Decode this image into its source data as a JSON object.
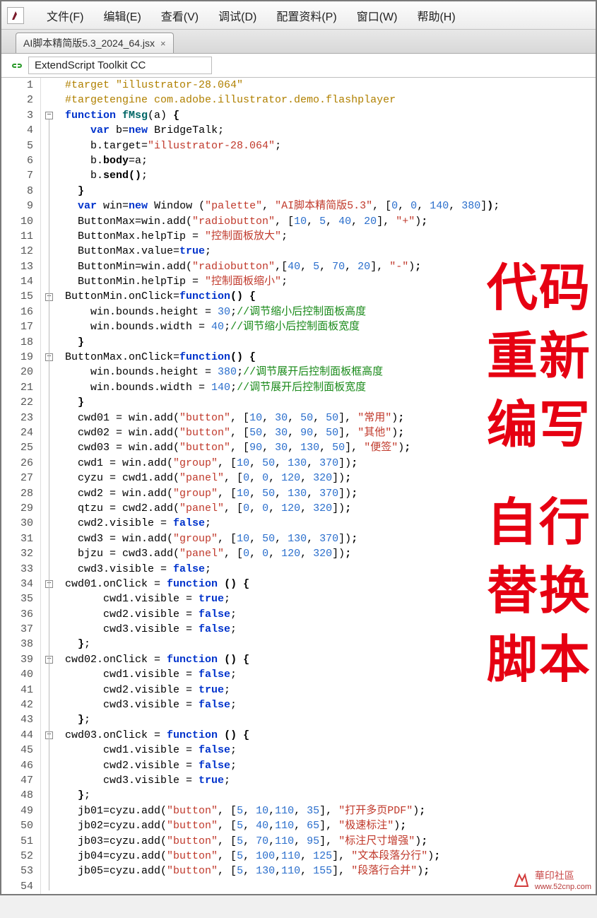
{
  "menu": {
    "items": [
      "文件(F)",
      "编辑(E)",
      "查看(V)",
      "调试(D)",
      "配置资料(P)",
      "窗口(W)",
      "帮助(H)"
    ]
  },
  "tab": {
    "title": "AI脚本精简版5.3_2024_64.jsx"
  },
  "target": {
    "selected": "ExtendScript Toolkit CC"
  },
  "overlay": {
    "l1": "代码",
    "l2": "重新",
    "l3": "编写",
    "l4": "自行",
    "l5": "替换",
    "l6": "脚本"
  },
  "watermark": {
    "name": "華印社區",
    "url": "www.52cnp.com"
  },
  "code": {
    "lines": [
      {
        "n": 1,
        "t": "hash",
        "txt": "#target \"illustrator-28.064\""
      },
      {
        "n": 2,
        "t": "hash",
        "txt": "#targetengine com.adobe.illustrator.demo.flashplayer"
      },
      {
        "n": 3,
        "html": "<span class='kw'>function</span> <span class='fn'>fMsg</span>(a) <b>{</b>"
      },
      {
        "n": 4,
        "html": "    <span class='kw'>var</span> b=<span class='kw'>new</span> BridgeTalk;"
      },
      {
        "n": 5,
        "html": "    b.target=<span class='str'>\"illustrator-28.064\"</span>;"
      },
      {
        "n": 6,
        "html": "    b.<b>body</b>=a;"
      },
      {
        "n": 7,
        "html": "    b.<b>send()</b>;"
      },
      {
        "n": 8,
        "html": "  <b>}</b>"
      },
      {
        "n": 9,
        "html": "  <span class='kw'>var</span> win=<span class='kw'>new</span> Window (<span class='str'>\"palette\"</span>, <span class='str'>\"AI脚本精简版5.3\"</span>, [<span class='num'>0</span>, <span class='num'>0</span>, <span class='num'>140</span>, <span class='num'>380</span>]<b>)</b>;"
      },
      {
        "n": 10,
        "html": "  ButtonMax=win.add(<span class='str'>\"radiobutton\"</span>, [<span class='num'>10</span>, <span class='num'>5</span>, <span class='num'>40</span>, <span class='num'>20</span>], <span class='str'>\"+\"</span>)<b>;</b>"
      },
      {
        "n": 11,
        "html": "  ButtonMax.helpTip = <span class='str'>\"控制面板放大\"</span>;"
      },
      {
        "n": 12,
        "html": "  ButtonMax.value=<span class='kw'>true</span>;"
      },
      {
        "n": 13,
        "html": "  ButtonMin=win.add(<span class='str'>\"radiobutton\"</span>,[<span class='num'>40</span>, <span class='num'>5</span>, <span class='num'>70</span>, <span class='num'>20</span>], <span class='str'>\"-\"</span>)<b>;</b>"
      },
      {
        "n": 14,
        "html": "  ButtonMin.helpTip = <span class='str'>\"控制面板缩小\"</span>;"
      },
      {
        "n": 15,
        "html": "ButtonMin.onClick=<span class='kw'>function</span><b>() {</b>"
      },
      {
        "n": 16,
        "html": "    win.bounds.height = <span class='num'>30</span>;<span class='cm'>//调节缩小后控制面板高度</span>"
      },
      {
        "n": 17,
        "html": "    win.bounds.width = <span class='num'>40</span>;<span class='cm'>//调节缩小后控制面板宽度</span>"
      },
      {
        "n": 18,
        "html": "  <b>}</b>"
      },
      {
        "n": 19,
        "html": "ButtonMax.onClick=<span class='kw'>function</span><b>() {</b>"
      },
      {
        "n": 20,
        "html": "    win.bounds.height = <span class='num'>380</span>;<span class='cm'>//调节展开后控制面板框高度</span>"
      },
      {
        "n": 21,
        "html": "    win.bounds.width = <span class='num'>140</span>;<span class='cm'>//调节展开后控制面板宽度</span>"
      },
      {
        "n": 22,
        "html": "  <b>}</b>"
      },
      {
        "n": 23,
        "html": "  cwd01 = win.add(<span class='str'>\"button\"</span>, [<span class='num'>10</span>, <span class='num'>30</span>, <span class='num'>50</span>, <span class='num'>50</span>], <span class='str'>\"常用\"</span>)<b>;</b>"
      },
      {
        "n": 24,
        "html": "  cwd02 = win.add(<span class='str'>\"button\"</span>, [<span class='num'>50</span>, <span class='num'>30</span>, <span class='num'>90</span>, <span class='num'>50</span>], <span class='str'>\"其他\"</span>)<b>;</b>"
      },
      {
        "n": 25,
        "html": "  cwd03 = win.add(<span class='str'>\"button\"</span>, [<span class='num'>90</span>, <span class='num'>30</span>, <span class='num'>130</span>, <span class='num'>50</span>], <span class='str'>\"便签\"</span>)<b>;</b>"
      },
      {
        "n": 26,
        "html": "  cwd1 = win.add(<span class='str'>\"group\"</span>, [<span class='num'>10</span>, <span class='num'>50</span>, <span class='num'>130</span>, <span class='num'>370</span>])<b>;</b>"
      },
      {
        "n": 27,
        "html": "  cyzu = cwd1.add(<span class='str'>\"panel\"</span>, [<span class='num'>0</span>, <span class='num'>0</span>, <span class='num'>120</span>, <span class='num'>320</span>])<b>;</b>"
      },
      {
        "n": 28,
        "html": "  cwd2 = win.add(<span class='str'>\"group\"</span>, [<span class='num'>10</span>, <span class='num'>50</span>, <span class='num'>130</span>, <span class='num'>370</span>])<b>;</b>"
      },
      {
        "n": 29,
        "html": "  qtzu = cwd2.add(<span class='str'>\"panel\"</span>, [<span class='num'>0</span>, <span class='num'>0</span>, <span class='num'>120</span>, <span class='num'>320</span>])<b>;</b>"
      },
      {
        "n": 30,
        "html": "  cwd2.visible = <span class='kw'>false</span>;"
      },
      {
        "n": 31,
        "html": "  cwd3 = win.add(<span class='str'>\"group\"</span>, [<span class='num'>10</span>, <span class='num'>50</span>, <span class='num'>130</span>, <span class='num'>370</span>])<b>;</b>"
      },
      {
        "n": 32,
        "html": "  bjzu = cwd3.add(<span class='str'>\"panel\"</span>, [<span class='num'>0</span>, <span class='num'>0</span>, <span class='num'>120</span>, <span class='num'>320</span>])<b>;</b>"
      },
      {
        "n": 33,
        "html": "  cwd3.visible = <span class='kw'>false</span>;"
      },
      {
        "n": 34,
        "html": "cwd01.onClick = <span class='kw'>function</span> <b>() {</b>"
      },
      {
        "n": 35,
        "html": "      cwd1.visible = <span class='kw'>true</span>;"
      },
      {
        "n": 36,
        "html": "      cwd2.visible = <span class='kw'>false</span>;"
      },
      {
        "n": 37,
        "html": "      cwd3.visible = <span class='kw'>false</span>;"
      },
      {
        "n": 38,
        "html": "  <b>}</b>;"
      },
      {
        "n": 39,
        "html": "cwd02.onClick = <span class='kw'>function</span> <b>() {</b>"
      },
      {
        "n": 40,
        "html": "      cwd1.visible = <span class='kw'>false</span>;"
      },
      {
        "n": 41,
        "html": "      cwd2.visible = <span class='kw'>true</span>;"
      },
      {
        "n": 42,
        "html": "      cwd3.visible = <span class='kw'>false</span>;"
      },
      {
        "n": 43,
        "html": "  <b>}</b>;"
      },
      {
        "n": 44,
        "html": "cwd03.onClick = <span class='kw'>function</span> <b>() {</b>"
      },
      {
        "n": 45,
        "html": "      cwd1.visible = <span class='kw'>false</span>;"
      },
      {
        "n": 46,
        "html": "      cwd2.visible = <span class='kw'>false</span>;"
      },
      {
        "n": 47,
        "html": "      cwd3.visible = <span class='kw'>true</span>;"
      },
      {
        "n": 48,
        "html": "  <b>}</b>;"
      },
      {
        "n": 49,
        "html": "  jb01=cyzu.add(<span class='str'>\"button\"</span>, [<span class='num'>5</span>, <span class='num'>10</span>,<span class='num'>110</span>, <span class='num'>35</span>], <span class='str'>\"打开多页PDF\"</span>)<b>;</b>"
      },
      {
        "n": 50,
        "html": "  jb02=cyzu.add(<span class='str'>\"button\"</span>, [<span class='num'>5</span>, <span class='num'>40</span>,<span class='num'>110</span>, <span class='num'>65</span>], <span class='str'>\"极速标注\"</span>)<b>;</b>"
      },
      {
        "n": 51,
        "html": "  jb03=cyzu.add(<span class='str'>\"button\"</span>, [<span class='num'>5</span>, <span class='num'>70</span>,<span class='num'>110</span>, <span class='num'>95</span>], <span class='str'>\"标注尺寸增强\"</span>)<b>;</b>"
      },
      {
        "n": 52,
        "html": "  jb04=cyzu.add(<span class='str'>\"button\"</span>, [<span class='num'>5</span>, <span class='num'>100</span>,<span class='num'>110</span>, <span class='num'>125</span>], <span class='str'>\"文本段落分行\"</span>)<b>;</b>"
      },
      {
        "n": 53,
        "html": "  jb05=cyzu.add(<span class='str'>\"button\"</span>, [<span class='num'>5</span>, <span class='num'>130</span>,<span class='num'>110</span>, <span class='num'>155</span>], <span class='str'>\"段落行合并\"</span>)<b>;</b>"
      },
      {
        "n": 54,
        "html": "  "
      }
    ]
  }
}
